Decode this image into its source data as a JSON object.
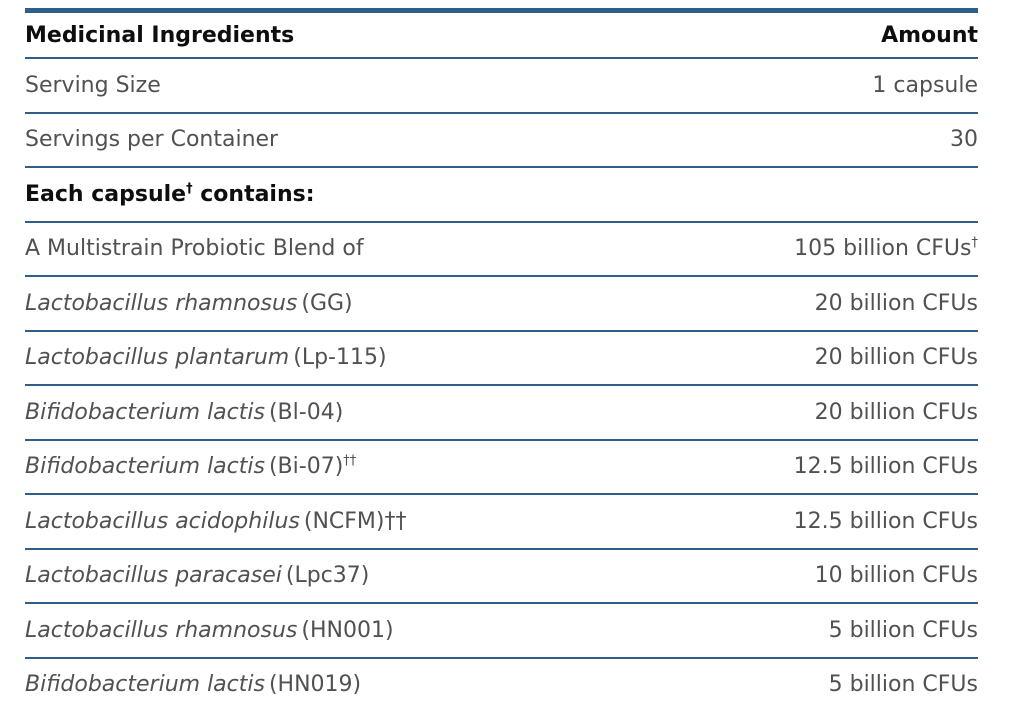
{
  "colors": {
    "line": "#2d5f8c",
    "text": "#515151",
    "heading": "#0e0e0e",
    "background": "#ffffff"
  },
  "table": {
    "header": {
      "ingredients_label": "Medicinal Ingredients",
      "amount_label": "Amount"
    },
    "serving_size": {
      "label": "Serving Size",
      "value": "1 capsule"
    },
    "servings_per_container": {
      "label": "Servings per Container",
      "value": "30"
    },
    "section_header": {
      "text": "Each capsule",
      "sup": "†",
      "suffix": " contains:"
    },
    "blend": {
      "label": "A Multistrain Probiotic Blend of",
      "amount": "105 billion CFUs",
      "amount_sup": "†"
    },
    "strains": [
      {
        "species": "Lactobacillus rhamnosus",
        "code": "(GG)",
        "sup": "",
        "tail": "",
        "amount": "20 billion CFUs"
      },
      {
        "species": "Lactobacillus plantarum",
        "code": "(Lp-115)",
        "sup": "",
        "tail": "",
        "amount": "20 billion CFUs"
      },
      {
        "species": "Bifidobacterium lactis",
        "code": "(Bl-04)",
        "sup": "",
        "tail": "",
        "amount": "20 billion CFUs"
      },
      {
        "species": "Bifidobacterium lactis",
        "code": "(Bi-07)",
        "sup": "††",
        "tail": "",
        "amount": "12.5 billion CFUs"
      },
      {
        "species": "Lactobacillus acidophilus",
        "code": "(NCFM)",
        "sup": "",
        "tail": "††",
        "amount": "12.5 billion CFUs"
      },
      {
        "species": "Lactobacillus paracasei",
        "code": "(Lpc37)",
        "sup": "",
        "tail": "",
        "amount": "10 billion CFUs"
      },
      {
        "species": "Lactobacillus rhamnosus",
        "code": "(HN001)",
        "sup": "",
        "tail": "",
        "amount": "5 billion CFUs"
      },
      {
        "species": "Bifidobacterium lactis",
        "code": "(HN019)",
        "sup": "",
        "tail": "",
        "amount": "5 billion CFUs"
      }
    ]
  }
}
